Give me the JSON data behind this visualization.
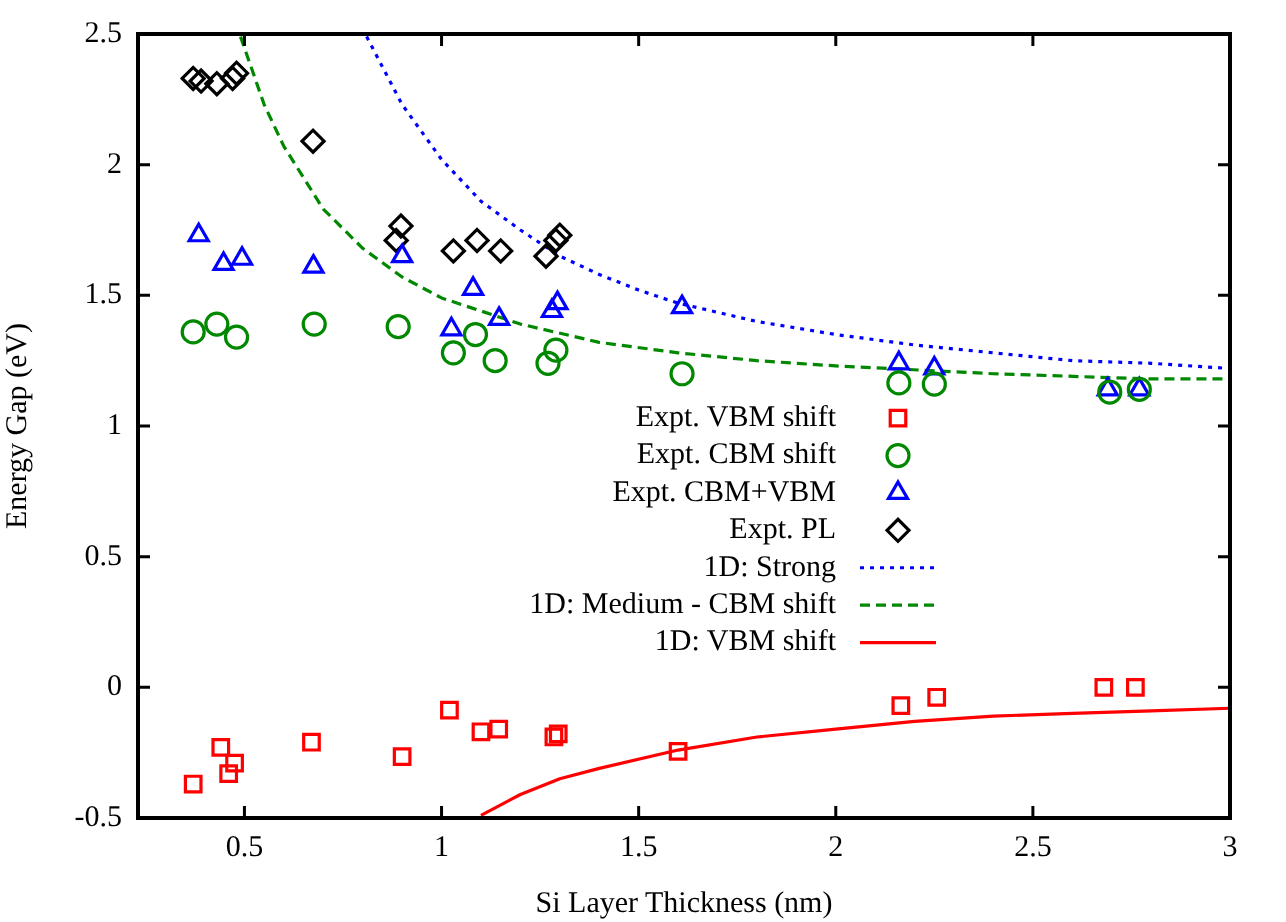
{
  "chart_data": {
    "type": "scatter",
    "xlabel": "Si Layer Thickness (nm)",
    "ylabel": "Energy Gap (eV)",
    "xlim": [
      0.23,
      3
    ],
    "xticks": [
      {
        "value": 0.5,
        "label": "0.5"
      },
      1,
      {
        "value": 1.5,
        "label": "1.5"
      },
      2,
      {
        "value": 2.5,
        "label": "2.5"
      },
      3
    ],
    "ylim": [
      -0.5,
      2.5
    ],
    "yticks": [
      {
        "value": -0.5,
        "label": "-0.5"
      },
      0,
      {
        "value": 0.5,
        "label": "0.5"
      },
      1,
      {
        "value": 1.5,
        "label": "1.5"
      },
      2,
      {
        "value": 2.5,
        "label": "2.5"
      }
    ],
    "grid": false,
    "legend": "right",
    "series": [
      {
        "name": "Expt. VBM shift",
        "type": "scatter",
        "marker": "square",
        "color": "#ff0000",
        "x": [
          0.37,
          0.44,
          0.46,
          0.475,
          0.67,
          0.9,
          1.02,
          1.1,
          1.145,
          1.285,
          1.296,
          1.6,
          2.165,
          2.256,
          2.68,
          2.76
        ],
        "values": [
          -0.37,
          -0.23,
          -0.33,
          -0.29,
          -0.21,
          -0.265,
          -0.087,
          -0.17,
          -0.16,
          -0.19,
          -0.178,
          -0.245,
          -0.07,
          -0.038,
          0,
          0
        ]
      },
      {
        "name": "Expt. CBM shift",
        "type": "scatter",
        "marker": "circle",
        "color": "#008800",
        "x": [
          0.37,
          0.43,
          0.48,
          0.677,
          0.89,
          1.03,
          1.086,
          1.136,
          1.27,
          1.29,
          1.61,
          2.16,
          2.25,
          2.695,
          2.77
        ],
        "values": [
          1.36,
          1.39,
          1.34,
          1.39,
          1.38,
          1.28,
          1.35,
          1.25,
          1.24,
          1.29,
          1.2,
          1.165,
          1.16,
          1.13,
          1.14
        ]
      },
      {
        "name": "Expt. CBM+VBM",
        "type": "scatter",
        "marker": "triangle",
        "color": "#0000ff",
        "x": [
          0.384,
          0.447,
          0.494,
          0.675,
          0.9,
          1.025,
          1.08,
          1.146,
          1.28,
          1.294,
          1.61,
          2.16,
          2.25,
          2.69,
          2.77
        ],
        "values": [
          1.73,
          1.62,
          1.64,
          1.61,
          1.65,
          1.37,
          1.525,
          1.41,
          1.44,
          1.47,
          1.455,
          1.24,
          1.22,
          1.14,
          1.14
        ]
      },
      {
        "name": "Expt. PL",
        "type": "scatter",
        "marker": "diamond",
        "color": "#000000",
        "x": [
          0.37,
          0.39,
          0.43,
          0.47,
          0.48,
          0.674,
          0.885,
          0.897,
          1.03,
          1.09,
          1.15,
          1.265,
          1.29,
          1.3
        ],
        "values": [
          2.33,
          2.32,
          2.31,
          2.33,
          2.35,
          2.09,
          1.71,
          1.765,
          1.67,
          1.71,
          1.67,
          1.65,
          1.71,
          1.73
        ]
      },
      {
        "name": "1D: Strong",
        "type": "line",
        "marker": "none",
        "line_style": "dotted",
        "color": "#0000ff",
        "x": [
          0.81,
          0.9,
          1,
          1.1,
          1.2,
          1.3,
          1.4,
          1.5,
          1.6,
          1.8,
          2,
          2.2,
          2.4,
          2.6,
          2.8,
          3
        ],
        "values": [
          2.49,
          2.23,
          2.02,
          1.86,
          1.75,
          1.65,
          1.58,
          1.52,
          1.47,
          1.4,
          1.35,
          1.31,
          1.28,
          1.25,
          1.24,
          1.22
        ]
      },
      {
        "name": "1D: Medium - CBM shift",
        "type": "line",
        "marker": "none",
        "line_style": "dashed",
        "color": "#008800",
        "x": [
          0.49,
          0.55,
          0.6,
          0.7,
          0.8,
          0.9,
          1,
          1.2,
          1.4,
          1.6,
          1.8,
          2,
          2.4,
          2.8,
          3
        ],
        "values": [
          2.49,
          2.23,
          2.07,
          1.83,
          1.68,
          1.57,
          1.49,
          1.39,
          1.32,
          1.28,
          1.25,
          1.23,
          1.2,
          1.18,
          1.18
        ]
      },
      {
        "name": "1D: VBM shift",
        "type": "line",
        "marker": "none",
        "line_style": "solid",
        "color": "#ff0000",
        "x": [
          1.1,
          1.2,
          1.3,
          1.4,
          1.6,
          1.8,
          2,
          2.2,
          2.4,
          2.6,
          2.8,
          3
        ],
        "values": [
          -0.49,
          -0.41,
          -0.35,
          -0.31,
          -0.24,
          -0.19,
          -0.16,
          -0.13,
          -0.11,
          -0.1,
          -0.09,
          -0.08
        ]
      }
    ]
  }
}
